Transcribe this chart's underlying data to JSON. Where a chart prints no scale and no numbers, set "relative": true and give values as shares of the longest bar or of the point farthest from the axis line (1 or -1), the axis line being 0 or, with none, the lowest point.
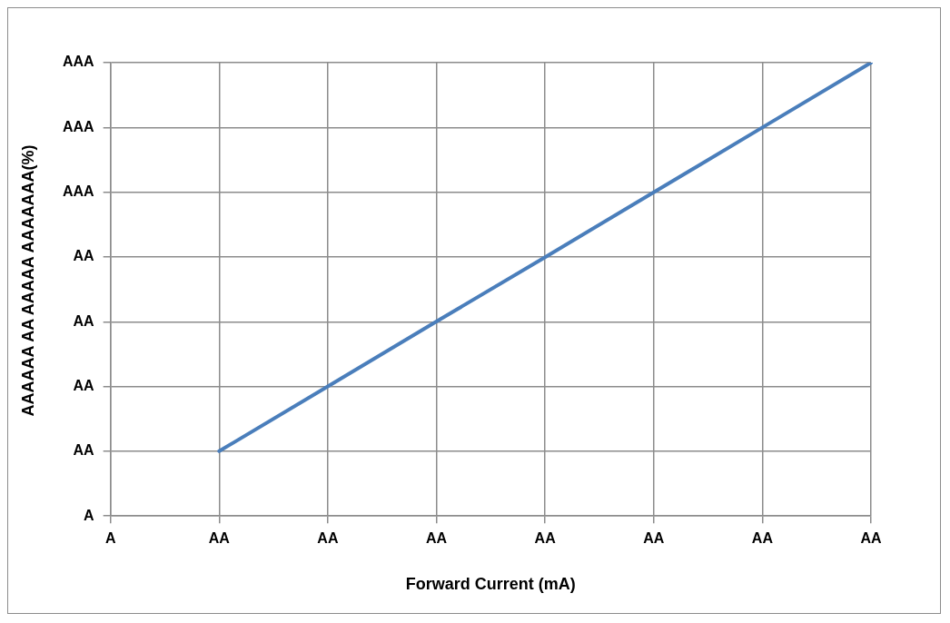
{
  "chart_data": {
    "type": "line",
    "relative": true,
    "xlabel": "Forward Current (mA)",
    "ylabel": "AAAAAA AA AAAAA AAAAAAA(%)",
    "categories": [
      "A",
      "AA",
      "AA",
      "AA",
      "AA",
      "AA",
      "AA",
      "AA"
    ],
    "series": [
      {
        "color": "#4a7ebb",
        "values": [
          null,
          0.143,
          0.286,
          0.429,
          0.571,
          0.714,
          0.857,
          1
        ]
      }
    ],
    "annotations": [
      "A",
      "AA",
      "AA",
      "AA",
      "AA",
      "AAA",
      "AAA",
      "AAA"
    ],
    "grid": true,
    "legend": false,
    "marker": "none",
    "line_style": "solid"
  }
}
